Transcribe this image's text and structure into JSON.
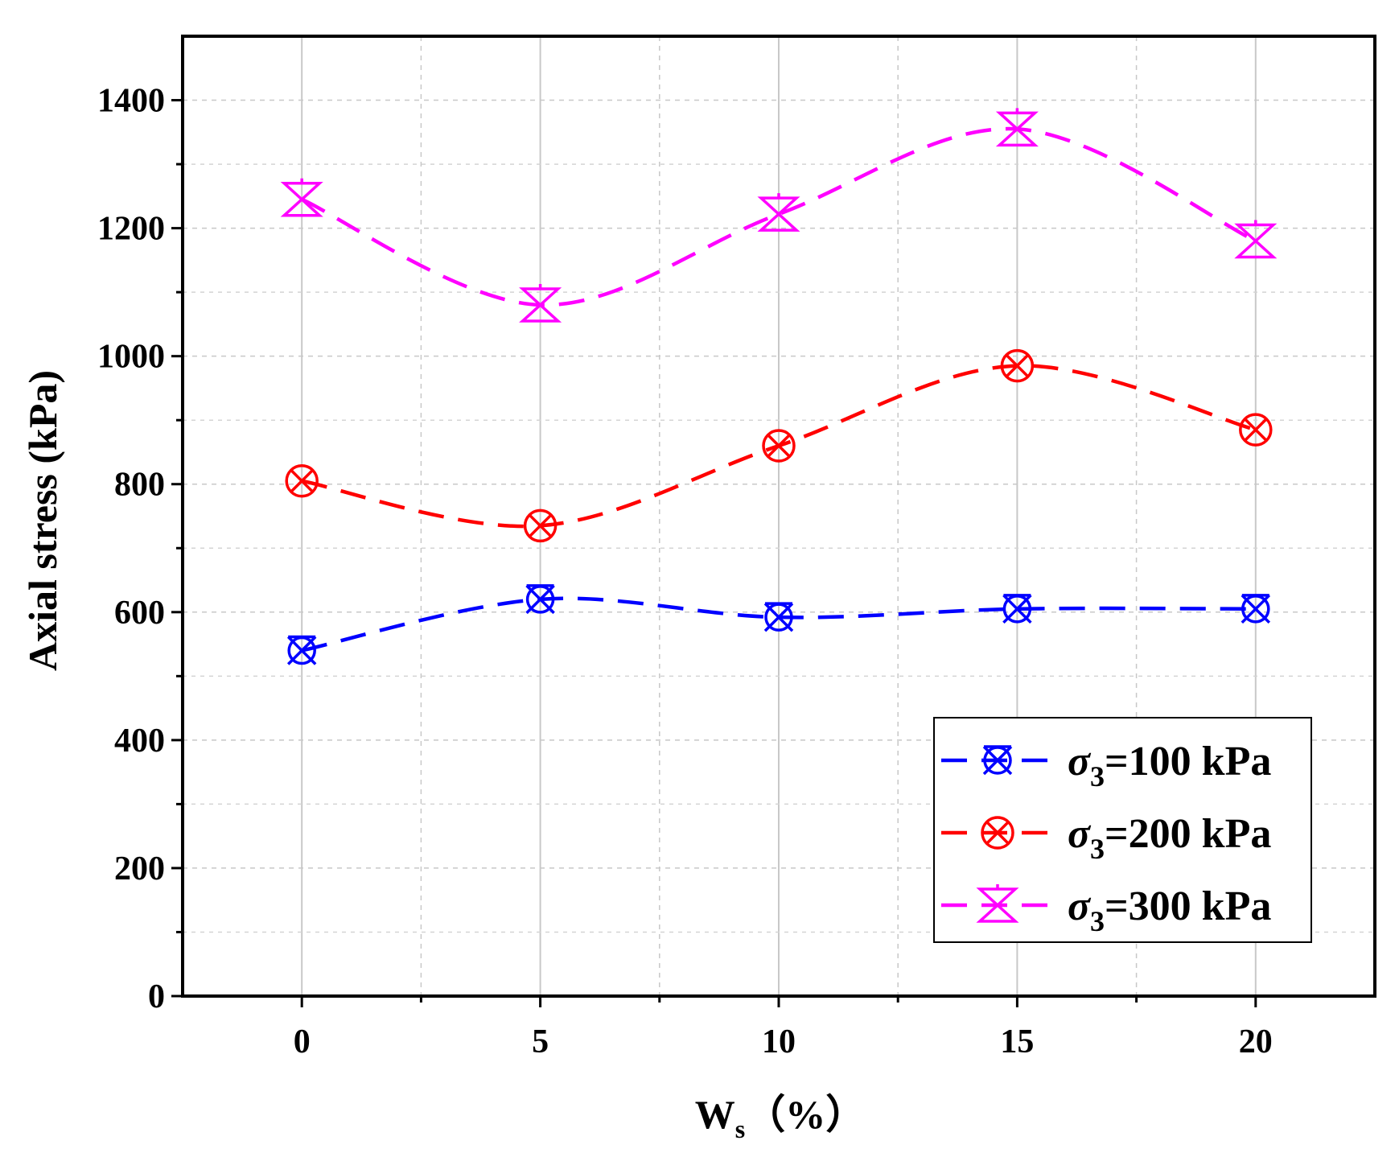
{
  "chart_data": {
    "type": "line",
    "title": "",
    "xlabel_main": "W",
    "xlabel_sub": "s",
    "xlabel_unit": "（%）",
    "ylabel": "Axial stress (kPa)",
    "xlim": [
      -2.5,
      22.5
    ],
    "ylim": [
      0,
      1500
    ],
    "x_ticks": [
      0,
      5,
      10,
      15,
      20
    ],
    "x_tick_labels": [
      "0",
      "5",
      "10",
      "15",
      "20"
    ],
    "x_minor_ticks": [
      2.5,
      7.5,
      12.5,
      17.5
    ],
    "y_ticks": [
      0,
      200,
      400,
      600,
      800,
      1000,
      1200,
      1400
    ],
    "y_tick_labels": [
      "0",
      "200",
      "400",
      "600",
      "800",
      "1000",
      "1200",
      "1400"
    ],
    "y_minor_ticks": [
      100,
      300,
      500,
      700,
      900,
      1100,
      1300
    ],
    "grid": true,
    "legend_position": "bottom-right",
    "x": [
      0,
      5,
      10,
      15,
      20
    ],
    "series": [
      {
        "name": "σ3=100 kPa",
        "legend_symbol": "σ",
        "legend_sub": "3",
        "legend_rest": "=100 kPa",
        "color": "#0000ff",
        "marker": "circle-x-box",
        "values": [
          540,
          620,
          592,
          605,
          605
        ]
      },
      {
        "name": "σ3=200 kPa",
        "legend_symbol": "σ",
        "legend_sub": "3",
        "legend_rest": "=200 kPa",
        "color": "#ff0000",
        "marker": "circle-x",
        "values": [
          805,
          735,
          860,
          985,
          885
        ]
      },
      {
        "name": "σ3=300 kPa",
        "legend_symbol": "σ",
        "legend_sub": "3",
        "legend_rest": "=300 kPa",
        "color": "#ff00ff",
        "marker": "hourglass",
        "values": [
          1245,
          1080,
          1222,
          1355,
          1180
        ]
      }
    ]
  }
}
